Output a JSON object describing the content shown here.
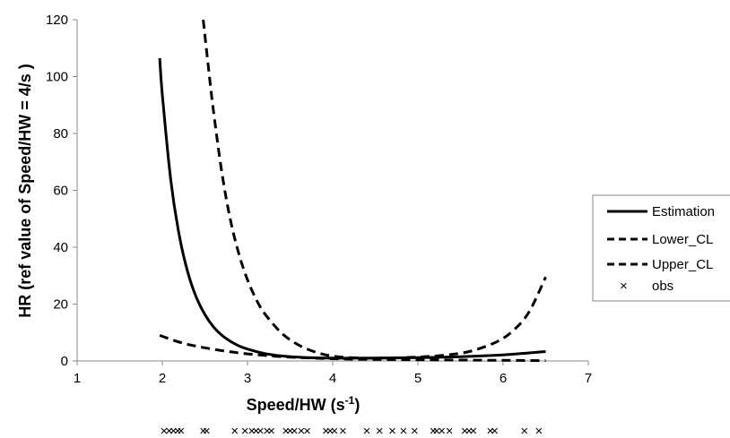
{
  "chart_data": {
    "type": "line",
    "title": "",
    "xlabel": "Speed/HW (s",
    "xlabel_sup": "-1",
    "xlabel_close": ")",
    "ylabel": "HR  (ref value of  Speed/HW = 4/s )",
    "xlim": [
      1,
      7
    ],
    "ylim": [
      0,
      120
    ],
    "x_ticks": [
      "1",
      "2",
      "3",
      "4",
      "5",
      "6",
      "7"
    ],
    "y_ticks": [
      "0",
      "20",
      "40",
      "60",
      "80",
      "100",
      "120"
    ],
    "grid": false,
    "legend_position": "right",
    "series": [
      {
        "name": "Estimation",
        "style": "solid",
        "x": [
          1.97,
          2.0,
          2.1,
          2.2,
          2.3,
          2.4,
          2.5,
          2.6,
          2.7,
          2.8,
          2.9,
          3.0,
          3.2,
          3.4,
          3.6,
          3.8,
          4.0,
          4.2,
          4.5,
          5.0,
          5.5,
          6.0,
          6.5
        ],
        "y": [
          106.5,
          93.6,
          63.4,
          44.0,
          31.1,
          22.3,
          16.3,
          12.0,
          9.0,
          6.9,
          5.3,
          4.2,
          2.6,
          1.77,
          1.31,
          1.09,
          1.0,
          0.98,
          1.0,
          1.15,
          1.5,
          2.15,
          3.3
        ]
      },
      {
        "name": "Lower_CL",
        "style": "dashed",
        "x": [
          1.97,
          2.2,
          2.4,
          2.6,
          2.8,
          3.0,
          3.2,
          3.5,
          4.0,
          4.5,
          5.0,
          5.5,
          6.0,
          6.5
        ],
        "y": [
          9.0,
          6.6,
          5.2,
          4.1,
          3.2,
          2.5,
          1.95,
          1.35,
          0.78,
          0.55,
          0.42,
          0.32,
          0.22,
          0.12
        ]
      },
      {
        "name": "Upper_CL",
        "style": "dashed",
        "x": [
          2.48,
          2.55,
          2.6,
          2.7,
          2.8,
          2.9,
          3.0,
          3.1,
          3.2,
          3.4,
          3.6,
          3.8,
          4.0,
          4.3,
          4.6,
          5.0,
          5.3,
          5.6,
          5.9,
          6.1,
          6.3,
          6.5
        ],
        "y": [
          120.0,
          101.0,
          88.0,
          66.0,
          49.5,
          37.5,
          28.5,
          21.8,
          16.7,
          9.8,
          5.6,
          3.1,
          1.7,
          1.05,
          1.0,
          1.4,
          2.0,
          3.3,
          6.4,
          10.2,
          17.0,
          29.5
        ]
      }
    ],
    "obs_label": "obs",
    "obs_x": [
      2.02,
      2.08,
      2.13,
      2.18,
      2.22,
      2.48,
      2.52,
      2.85,
      2.97,
      3.05,
      3.1,
      3.15,
      3.23,
      3.28,
      3.45,
      3.5,
      3.55,
      3.63,
      3.7,
      3.92,
      3.97,
      4.02,
      4.12,
      4.4,
      4.55,
      4.7,
      4.83,
      4.96,
      5.18,
      5.22,
      5.28,
      5.37,
      5.55,
      5.6,
      5.65,
      5.85,
      5.9,
      6.25,
      6.42
    ]
  }
}
